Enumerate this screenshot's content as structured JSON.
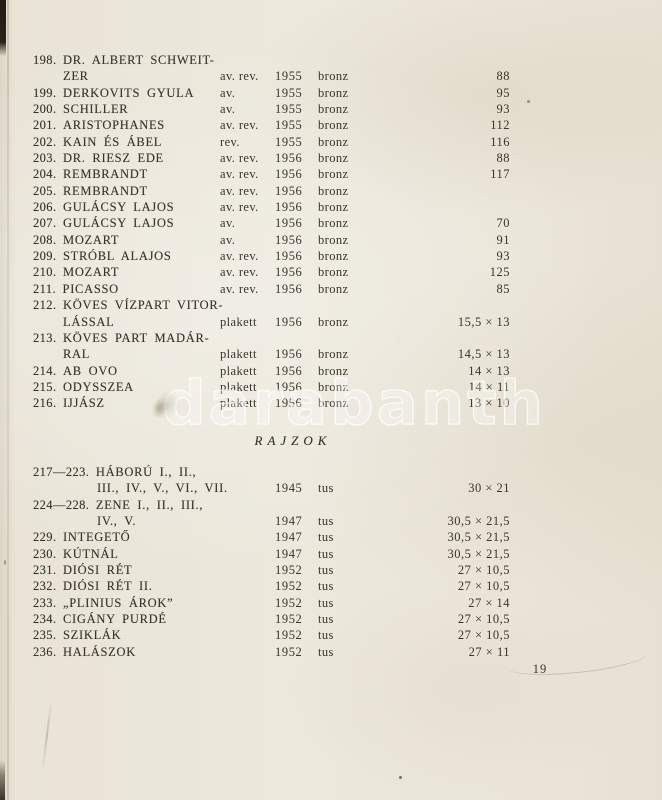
{
  "page": {
    "number": "19",
    "watermark": "darabanth"
  },
  "colors": {
    "paper": "#ece8dc",
    "ink": "#3a352c",
    "binding_edge": "#2a2419",
    "watermark_stroke": "#ffffff"
  },
  "catalog": {
    "medals_lines": [
      {
        "num": "198.",
        "title": "DR. ALBERT SCHWEIT-"
      },
      {
        "cont": true,
        "title": "ZER",
        "tech": "av. rev.",
        "year": "1955",
        "mat": "bronz",
        "size": "88"
      },
      {
        "num": "199.",
        "title": "DERKOVITS GYULA",
        "tech": "av.",
        "year": "1955",
        "mat": "bronz",
        "size": "95"
      },
      {
        "num": "200.",
        "title": "SCHILLER",
        "tech": "av.",
        "year": "1955",
        "mat": "bronz",
        "size": "93"
      },
      {
        "num": "201.",
        "title": "ARISTOPHANES",
        "tech": "av. rev.",
        "year": "1955",
        "mat": "bronz",
        "size": "112"
      },
      {
        "num": "202.",
        "title": "KAIN ÉS ÁBEL",
        "tech": "rev.",
        "year": "1955",
        "mat": "bronz",
        "size": "116"
      },
      {
        "num": "203.",
        "title": "DR. RIESZ EDE",
        "tech": "av. rev.",
        "year": "1956",
        "mat": "bronz",
        "size": "88"
      },
      {
        "num": "204.",
        "title": "REMBRANDT",
        "tech": "av. rev.",
        "year": "1956",
        "mat": "bronz",
        "size": "117"
      },
      {
        "num": "205.",
        "title": "REMBRANDT",
        "tech": "av. rev.",
        "year": "1956",
        "mat": "bronz",
        "size": ""
      },
      {
        "num": "206.",
        "title": "GULÁCSY LAJOS",
        "tech": "av. rev.",
        "year": "1956",
        "mat": "bronz",
        "size": ""
      },
      {
        "num": "207.",
        "title": "GULÁCSY LAJOS",
        "tech": "av.",
        "year": "1956",
        "mat": "bronz",
        "size": "70"
      },
      {
        "num": "208.",
        "title": "MOZART",
        "tech": "av.",
        "year": "1956",
        "mat": "bronz",
        "size": "91"
      },
      {
        "num": "209.",
        "title": "STRÓBL ALAJOS",
        "tech": "av. rev.",
        "year": "1956",
        "mat": "bronz",
        "size": "93"
      },
      {
        "num": "210.",
        "title": "MOZART",
        "tech": "av. rev.",
        "year": "1956",
        "mat": "bronz",
        "size": "125"
      },
      {
        "num": "211.",
        "title": "PICASSO",
        "tech": "av. rev.",
        "year": "1956",
        "mat": "bronz",
        "size": "85"
      },
      {
        "num": "212.",
        "title": "KÖVES VÍZPART VITOR-"
      },
      {
        "cont": true,
        "title": "LÁSSAL",
        "tech": "plakett",
        "year": "1956",
        "mat": "bronz",
        "size": "15,5 × 13"
      },
      {
        "num": "213.",
        "title": "KÖVES PART MADÁR-"
      },
      {
        "cont": true,
        "title": "RAL",
        "tech": "plakett",
        "year": "1956",
        "mat": "bronz",
        "size": "14,5 × 13"
      },
      {
        "num": "214.",
        "title": "AB OVO",
        "tech": "plakett",
        "year": "1956",
        "mat": "bronz",
        "size": "14 × 13"
      },
      {
        "num": "215.",
        "title": "ODYSSZEA",
        "tech": "plakett",
        "year": "1956",
        "mat": "bronz",
        "size": "14 × 11"
      },
      {
        "num": "216.",
        "title": "IJJÁSZ",
        "tech": "plakett",
        "year": "1956",
        "mat": "bronz",
        "size": "13 × 10"
      }
    ],
    "drawings_heading": "RAJZOK",
    "drawings_lines": [
      {
        "num": "217—223.",
        "title": "HÁBORÚ I., II.,"
      },
      {
        "cont": true,
        "title": "III., IV., V., VI., VII.",
        "tech": "",
        "year": "1945",
        "mat": "tus",
        "size": "30 × 21"
      },
      {
        "num": "224—228.",
        "title": "ZENE I., II., III.,"
      },
      {
        "cont": true,
        "title": "IV., V.",
        "tech": "",
        "year": "1947",
        "mat": "tus",
        "size": "30,5 × 21,5"
      },
      {
        "num": "229.",
        "title": "INTEGETŐ",
        "tech": "",
        "year": "1947",
        "mat": "tus",
        "size": "30,5 × 21,5"
      },
      {
        "num": "230.",
        "title": "KÚTNÁL",
        "tech": "",
        "year": "1947",
        "mat": "tus",
        "size": "30,5 × 21,5"
      },
      {
        "num": "231.",
        "title": "DIÓSI RÉT",
        "tech": "",
        "year": "1952",
        "mat": "tus",
        "size": "27 × 10,5"
      },
      {
        "num": "232.",
        "title": "DIÓSI RÉT II.",
        "tech": "",
        "year": "1952",
        "mat": "tus",
        "size": "27 × 10,5"
      },
      {
        "num": "233.",
        "title": "„PLINIUS ÁROK”",
        "tech": "",
        "year": "1952",
        "mat": "tus",
        "size": "27 × 14"
      },
      {
        "num": "234.",
        "title": "CIGÁNY PURDÉ",
        "tech": "",
        "year": "1952",
        "mat": "tus",
        "size": "27 × 10,5"
      },
      {
        "num": "235.",
        "title": "SZIKLÁK",
        "tech": "",
        "year": "1952",
        "mat": "tus",
        "size": "27 × 10,5"
      },
      {
        "num": "236.",
        "title": "HALÁSZOK",
        "tech": "",
        "year": "1952",
        "mat": "tus",
        "size": "27 × 11"
      }
    ]
  }
}
